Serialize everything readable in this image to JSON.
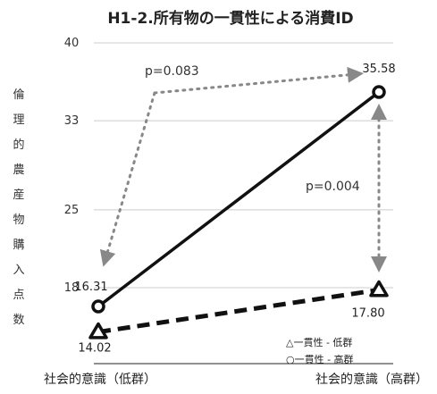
{
  "chart_data": {
    "type": "line",
    "title": "H1-2.所有物の一貫性による消費ID",
    "ylabel": "倫理的農産物購入点数",
    "ylim": [
      18,
      40
    ],
    "yticks": [
      "40",
      "33",
      "25",
      "18"
    ],
    "categories": [
      "社会的意識（低群）",
      "社会的意識（高群）"
    ],
    "series": [
      {
        "name": "○一貫性 - 高群",
        "marker": "circle",
        "style": "solid",
        "values": [
          16.31,
          35.58
        ],
        "labels": [
          "16.31",
          "35.58"
        ]
      },
      {
        "name": "△一貫性 - 低群",
        "marker": "triangle",
        "style": "dashed",
        "values": [
          14.02,
          17.8
        ],
        "labels": [
          "14.02",
          "17.80"
        ]
      }
    ],
    "annotations": [
      "p=0.083",
      "p=0.004"
    ],
    "grid": true,
    "legend_position": "bottom-right",
    "colors": {
      "line": "#111111",
      "grid": "#cccccc",
      "arrow": "#888888"
    }
  }
}
